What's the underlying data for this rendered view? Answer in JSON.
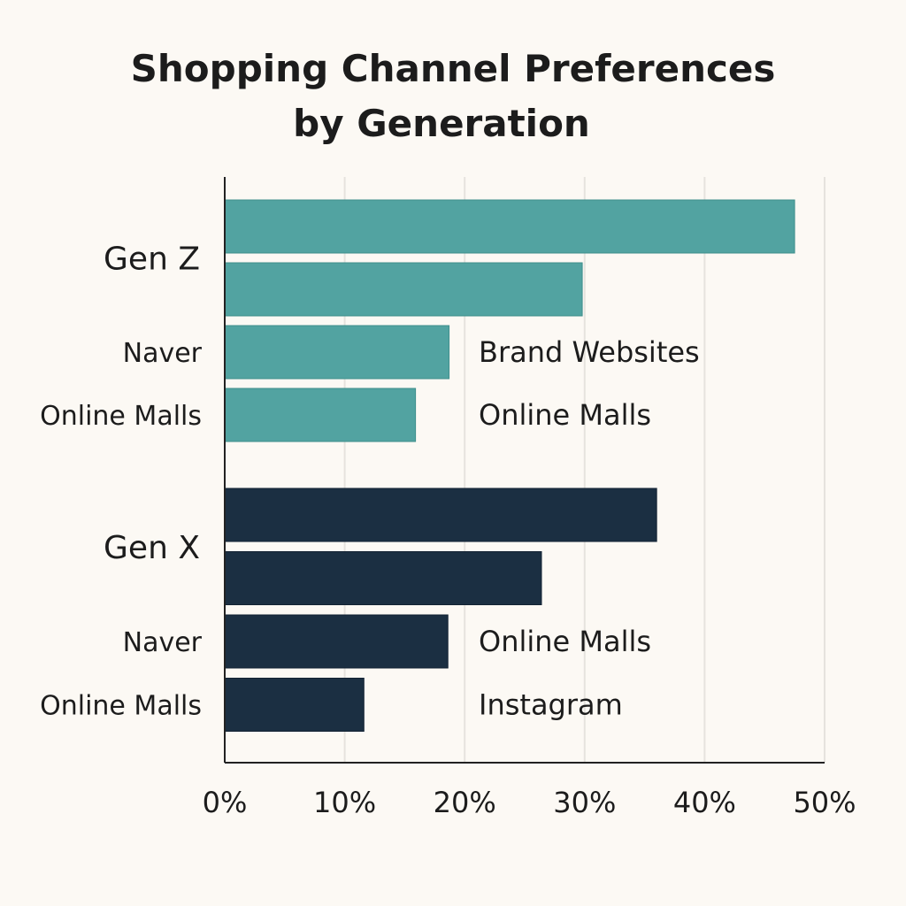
{
  "chart_data": {
    "type": "bar",
    "orientation": "horizontal",
    "title": "Shopping Channel Preferences by Generation",
    "title_lines": [
      "Shopping Channel Preferences",
      "by Generation"
    ],
    "xlabel": "",
    "ylabel": "",
    "xlim": [
      0,
      50
    ],
    "x_ticks": [
      0,
      10,
      20,
      30,
      40,
      50
    ],
    "x_tick_labels": [
      "0%",
      "10%",
      "20%",
      "30%",
      "40%",
      "50%"
    ],
    "grid": true,
    "groups": [
      {
        "name": "Gen Z",
        "color": "#52a3a1",
        "values": [
          47.5,
          29.8,
          18.7,
          15.9
        ],
        "left_labels": [
          "",
          "",
          "Naver",
          "Online Malls"
        ],
        "right_labels": [
          "",
          "",
          "Brand Websites",
          "Online Malls"
        ]
      },
      {
        "name": "Gen X",
        "color": "#1b2f42",
        "values": [
          36.0,
          26.4,
          18.6,
          11.6
        ],
        "left_labels": [
          "",
          "",
          "Naver",
          "Online Malls"
        ],
        "right_labels": [
          "",
          "",
          "Online Malls",
          "Instagram"
        ]
      }
    ]
  }
}
